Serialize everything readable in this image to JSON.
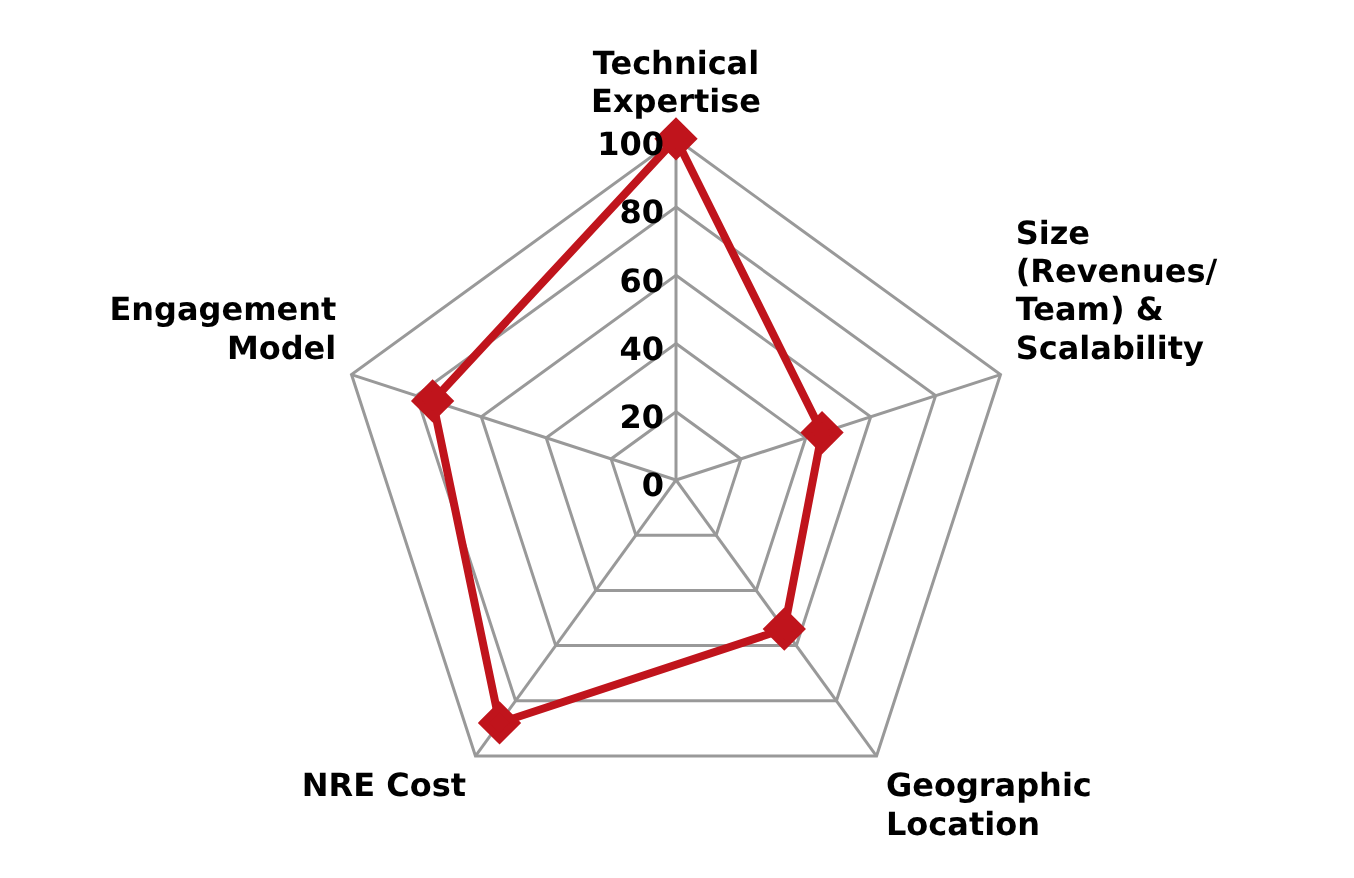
{
  "chart_data": {
    "type": "radar",
    "categories": [
      "Technical Expertise",
      "Size (Revenues/ Team) & Scalability",
      "Geographic Location",
      "NRE Cost",
      "Engagement Model"
    ],
    "series": [
      {
        "color": "#c0141c",
        "values": [
          100,
          45,
          54,
          88,
          75
        ]
      }
    ],
    "ylim": [
      0,
      100
    ],
    "yticks": [
      0,
      20,
      40,
      60,
      80,
      100
    ],
    "grid": true,
    "legend": false,
    "marker": "diamond",
    "line_style": "solid"
  }
}
